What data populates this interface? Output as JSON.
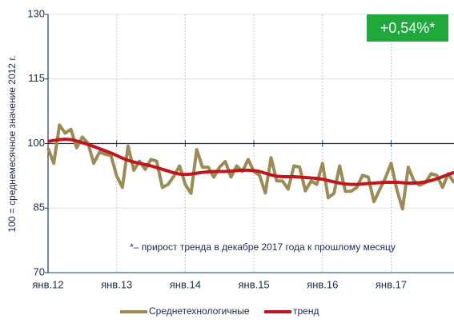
{
  "chart_data": {
    "type": "line",
    "ylabel": "100 = среднемесячное значение 2012 г.",
    "annotation": "+0,54%*",
    "note": "*– прирост тренда в декабре 2017 года к прошлому месяцу",
    "categories": [
      "янв.12",
      null,
      null,
      null,
      null,
      null,
      null,
      null,
      null,
      null,
      null,
      null,
      "янв.13",
      null,
      null,
      null,
      null,
      null,
      null,
      null,
      null,
      null,
      null,
      null,
      "янв.14",
      null,
      null,
      null,
      null,
      null,
      null,
      null,
      null,
      null,
      null,
      null,
      "янв.15",
      null,
      null,
      null,
      null,
      null,
      null,
      null,
      null,
      null,
      null,
      null,
      "янв.16",
      null,
      null,
      null,
      null,
      null,
      null,
      null,
      null,
      null,
      null,
      null,
      "янв.17",
      null,
      null,
      null,
      null,
      null,
      null,
      null,
      null,
      null,
      null,
      null
    ],
    "series": [
      {
        "name": "Среднетехнологичные",
        "color": "#9b8c56",
        "values": [
          98.9,
          95.4,
          104.3,
          102.4,
          103.3,
          99,
          101.5,
          100,
          95.4,
          98,
          97.5,
          97.2,
          92.5,
          89.8,
          99.4,
          93.8,
          95.9,
          94,
          96.3,
          95.9,
          89.8,
          90.5,
          92.4,
          94.8,
          90.5,
          88.4,
          98.6,
          94.5,
          94.5,
          92.2,
          94.5,
          95.8,
          92.2,
          94.8,
          93.5,
          96.3,
          93.5,
          92.6,
          88.5,
          96.7,
          91.3,
          91.3,
          89.4,
          94.8,
          94.5,
          89,
          91.3,
          90.5,
          95.4,
          87.4,
          88.4,
          94.8,
          88.9,
          88.9,
          89.8,
          92.6,
          92.2,
          86.5,
          89.3,
          92,
          95.4,
          89.3,
          84.8,
          94.5,
          91.3,
          90.3,
          90.9,
          93,
          92.6,
          89.8,
          93,
          90.9
        ]
      },
      {
        "name": "тренд",
        "color": "#c0161c",
        "values": [
          100.5,
          100.7,
          100.9,
          101,
          100.9,
          100.6,
          100.2,
          99.8,
          99.3,
          98.8,
          98.3,
          97.8,
          97.2,
          96.6,
          96.1,
          95.7,
          95.4,
          95.1,
          94.8,
          94.4,
          94,
          93.6,
          93.2,
          92.9,
          92.8,
          92.9,
          93.1,
          93.3,
          93.4,
          93.5,
          93.5,
          93.5,
          93.6,
          93.7,
          93.8,
          93.8,
          93.7,
          93.5,
          93.1,
          92.7,
          92.4,
          92.3,
          92.3,
          92.3,
          92.2,
          92.1,
          92,
          91.9,
          91.7,
          91.4,
          91.1,
          90.8,
          90.6,
          90.5,
          90.5,
          90.6,
          90.7,
          90.8,
          90.9,
          91,
          91,
          91,
          90.9,
          90.8,
          90.8,
          90.9,
          91.1,
          91.4,
          91.8,
          92.3,
          92.8,
          93.3
        ]
      }
    ],
    "ylim": [
      70,
      130
    ],
    "yticks": [
      70,
      85,
      100,
      115,
      130
    ],
    "xaxis_crosses": 100,
    "grid": true,
    "annotation_color": "#1fa83c"
  }
}
